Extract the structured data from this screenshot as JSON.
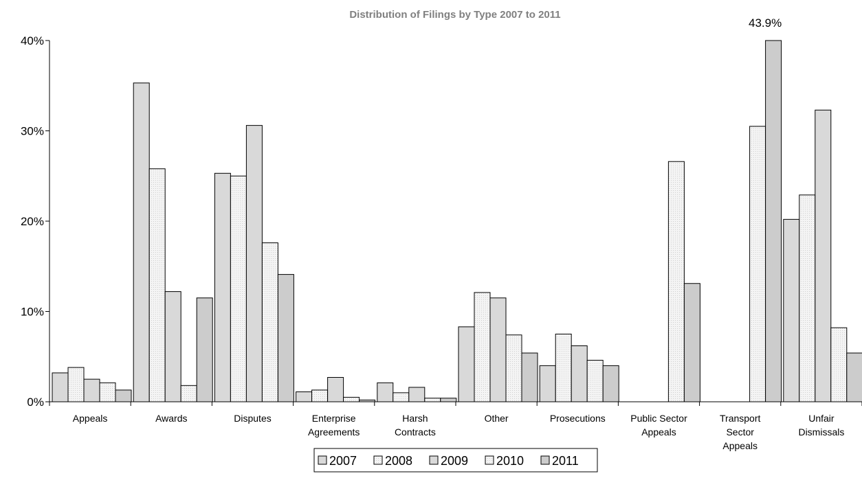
{
  "chart_data": {
    "type": "bar",
    "title": "Distribution of Filings by Type 2007 to 2011",
    "xlabel": "",
    "ylabel": "",
    "ylim": [
      0,
      40
    ],
    "yticks": [
      "0%",
      "10%",
      "20%",
      "30%",
      "40%"
    ],
    "grid": false,
    "legend": "bottom",
    "categories": [
      "Appeals",
      "Awards",
      "Disputes",
      "Enterprise Agreements",
      "Harsh Contracts",
      "Other",
      "Prosecutions",
      "Public Sector Appeals",
      "Transport Sector Appeals",
      "Unfair Dismissals"
    ],
    "category_label_lines": [
      [
        "Appeals"
      ],
      [
        "Awards"
      ],
      [
        "Disputes"
      ],
      [
        "Enterprise",
        "Agreements"
      ],
      [
        "Harsh",
        "Contracts"
      ],
      [
        "Other"
      ],
      [
        "Prosecutions"
      ],
      [
        "Public Sector",
        "Appeals"
      ],
      [
        "Transport",
        "Sector",
        "Appeals"
      ],
      [
        "Unfair",
        "Dismissals"
      ]
    ],
    "series": [
      {
        "name": "2007",
        "color": "#d9d9d9",
        "values": [
          3.2,
          35.3,
          25.3,
          1.1,
          2.1,
          8.3,
          4.0,
          null,
          null,
          20.2
        ]
      },
      {
        "name": "2008",
        "color": "#f2f2f2",
        "values": [
          3.8,
          25.8,
          25.0,
          1.3,
          1.0,
          12.1,
          7.5,
          null,
          null,
          22.9
        ]
      },
      {
        "name": "2009",
        "color": "#d9d9d9",
        "values": [
          2.5,
          12.2,
          30.6,
          2.7,
          1.6,
          11.5,
          6.2,
          null,
          null,
          32.3
        ]
      },
      {
        "name": "2010",
        "color": "#f2f2f2",
        "values": [
          2.1,
          1.8,
          17.6,
          0.5,
          0.4,
          7.4,
          4.6,
          26.6,
          30.5,
          8.2
        ]
      },
      {
        "name": "2011",
        "color": "#cccccc",
        "values": [
          1.3,
          11.5,
          14.1,
          0.2,
          0.4,
          5.4,
          4.0,
          13.1,
          43.9,
          5.4
        ]
      }
    ],
    "annotations": [
      {
        "text": "43.9%",
        "category": "Transport Sector Appeals",
        "series": "2011"
      }
    ]
  }
}
